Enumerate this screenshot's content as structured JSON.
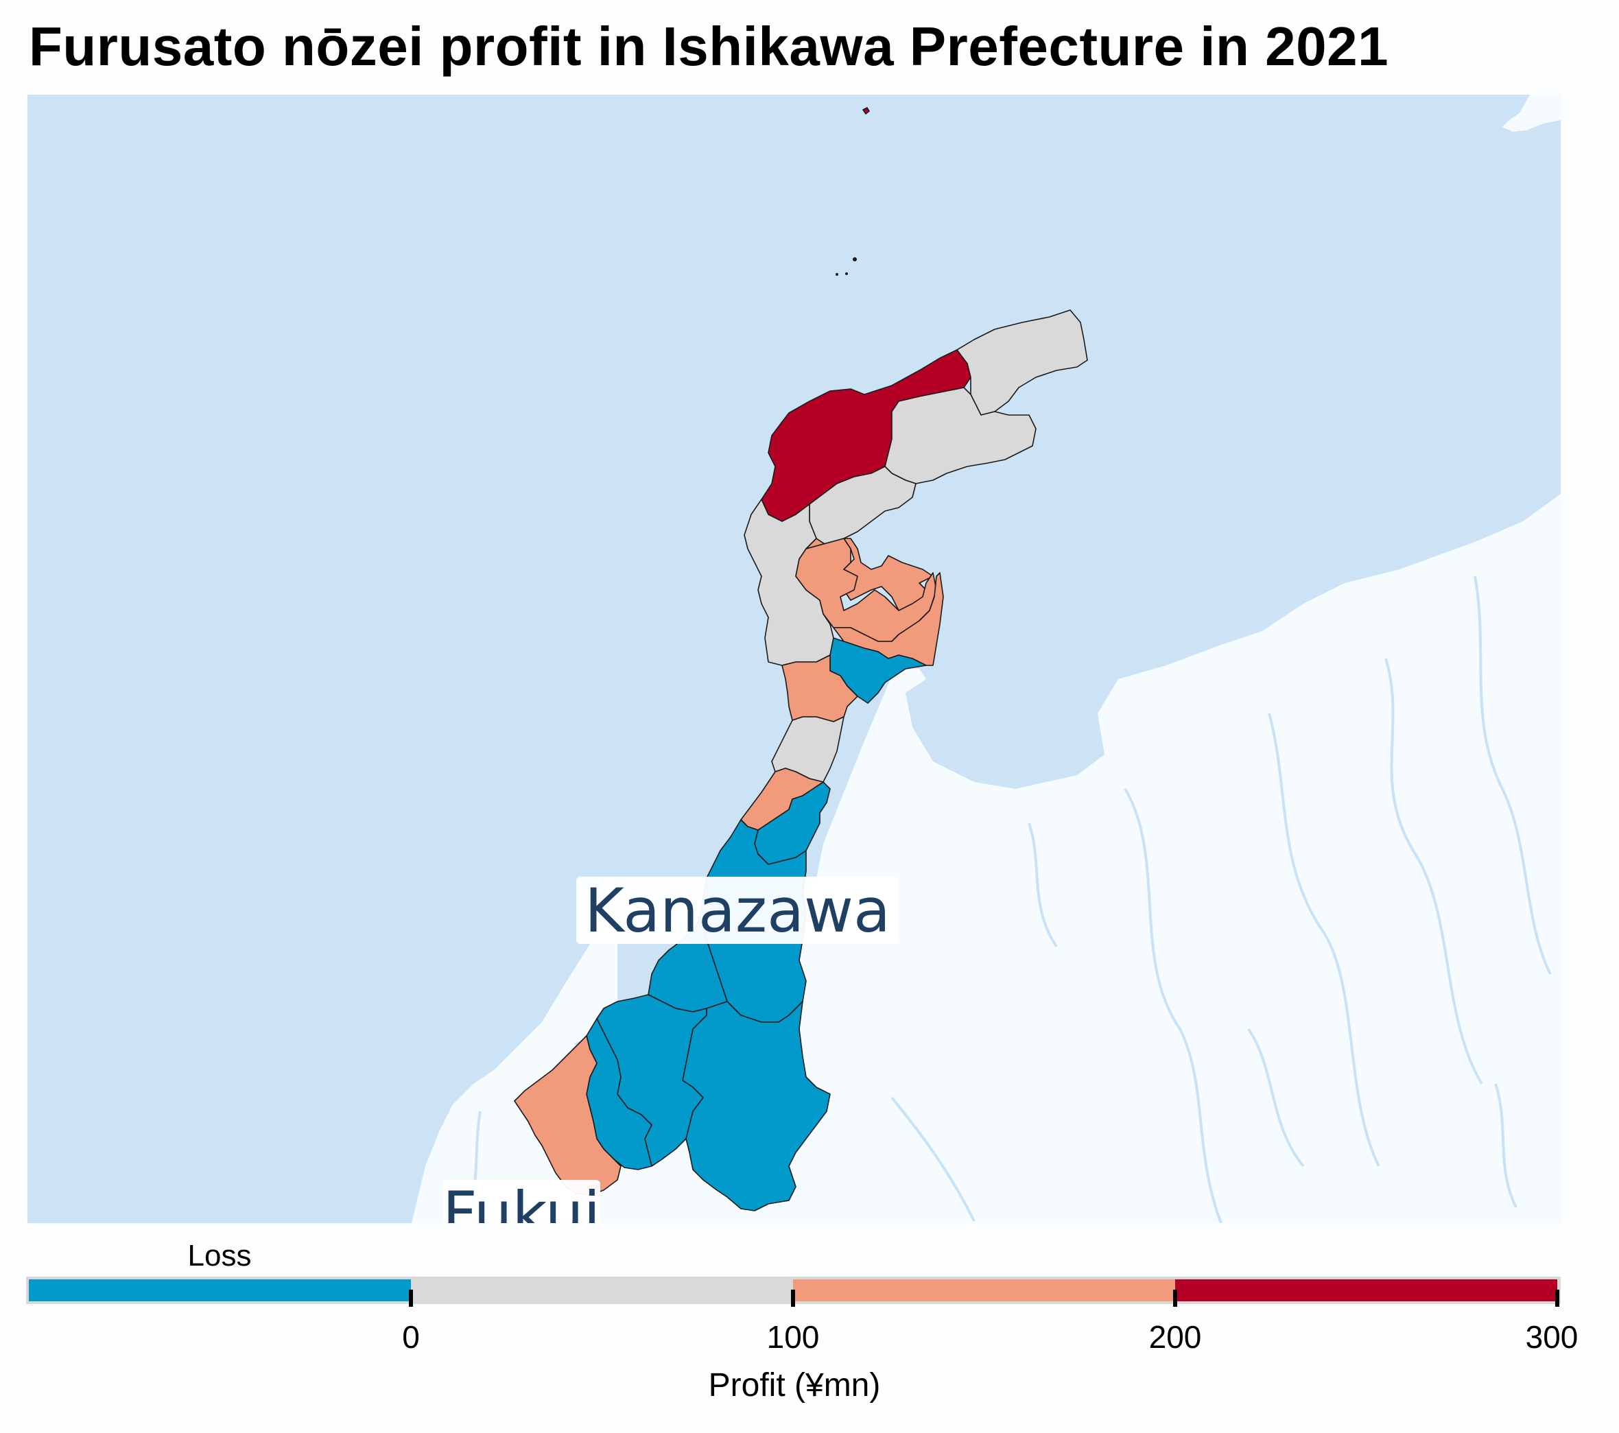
{
  "title": "Furusato nōzei profit in Ishikawa Prefecture in 2021",
  "map": {
    "city_labels": [
      "Kanazawa",
      "Fukui"
    ],
    "colors": {
      "sea": "#cce3f5",
      "land": "#f6fbfe",
      "river": "#c8e3f6",
      "label_text": "#1f3f63",
      "border": "#1a1a1a"
    }
  },
  "legend": {
    "loss_label": "Loss",
    "axis_title": "Profit (¥mn)",
    "ticks": [
      "0",
      "100",
      "200",
      "300"
    ],
    "bins": [
      {
        "range": "< 0",
        "color": "#0299cb"
      },
      {
        "range": "0–100",
        "color": "#d9d9d9"
      },
      {
        "range": "100–200",
        "color": "#f19a7c"
      },
      {
        "range": "200–300",
        "color": "#b30024"
      }
    ]
  }
}
